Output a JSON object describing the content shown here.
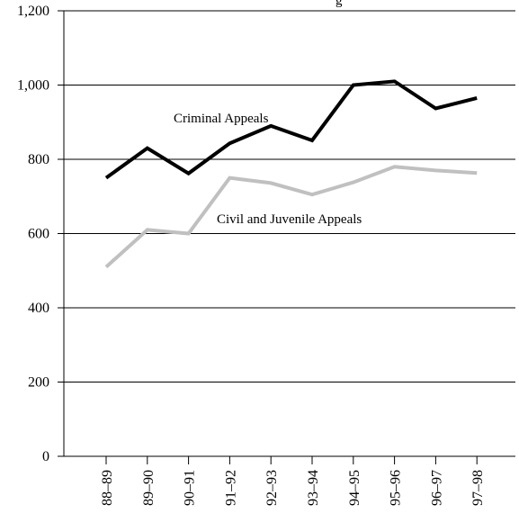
{
  "chart_data": {
    "type": "line",
    "title_fragment": "g",
    "categories": [
      "88–89",
      "89–90",
      "90–91",
      "91–92",
      "92–93",
      "93–94",
      "94–95",
      "95–96",
      "96–97",
      "97–98"
    ],
    "ylim": [
      0,
      1200
    ],
    "yticks": [
      0,
      200,
      400,
      600,
      800,
      1000,
      1200
    ],
    "ytick_labels": [
      "0",
      "200",
      "400",
      "600",
      "800",
      "1,000",
      "1,200"
    ],
    "grid": true,
    "series": [
      {
        "name": "Criminal Appeals",
        "color": "#000000",
        "values": [
          750,
          830,
          762,
          843,
          890,
          851,
          1000,
          1010,
          937,
          965
        ]
      },
      {
        "name": "Civil and Juvenile Appeals",
        "color": "#c0c0c0",
        "values": [
          510,
          610,
          600,
          750,
          736,
          705,
          738,
          780,
          770,
          763
        ]
      }
    ]
  }
}
